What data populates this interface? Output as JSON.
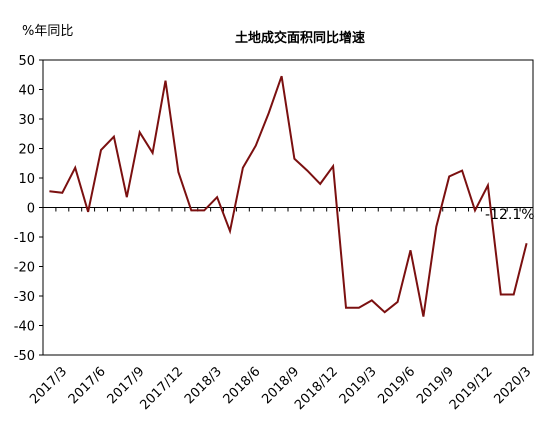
{
  "chart_data": {
    "type": "line",
    "title": "土地成交面积同比增速",
    "ylabel": "%年同比",
    "xlabel": "",
    "ylim": [
      -50,
      50
    ],
    "yticks": [
      50,
      40,
      30,
      20,
      10,
      0,
      -10,
      -20,
      -30,
      -40,
      -50
    ],
    "grid": false,
    "xtick_labels": [
      "2017/3",
      "2017/6",
      "2017/9",
      "2017/12",
      "2018/3",
      "2018/6",
      "2018/9",
      "2018/12",
      "2019/3",
      "2019/6",
      "2019/9",
      "2019/12",
      "2020/3"
    ],
    "x": [
      "2017/2",
      "2017/3",
      "2017/4",
      "2017/5",
      "2017/6",
      "2017/7",
      "2017/8",
      "2017/9",
      "2017/10",
      "2017/11",
      "2017/12",
      "2018/1",
      "2018/2",
      "2018/3",
      "2018/4",
      "2018/5",
      "2018/6",
      "2018/7",
      "2018/8",
      "2018/9",
      "2018/10",
      "2018/11",
      "2018/12",
      "2019/1",
      "2019/2",
      "2019/3",
      "2019/4",
      "2019/5",
      "2019/6",
      "2019/7",
      "2019/8",
      "2019/9",
      "2019/10",
      "2019/11",
      "2019/12",
      "2020/1",
      "2020/2",
      "2020/3"
    ],
    "series": [
      {
        "color": "#7b1010",
        "values": [
          5.5,
          5,
          13.5,
          -1.5,
          19.5,
          24,
          3.5,
          25.5,
          18.5,
          43,
          12,
          -1,
          -1,
          3.5,
          -8,
          13.5,
          21,
          32,
          44.5,
          16.5,
          12.5,
          8,
          14,
          -34,
          -34,
          -31.5,
          -35.5,
          -32,
          -14.5,
          -37,
          -6.5,
          10.5,
          12.5,
          -1,
          7.5,
          -29.5,
          -29.5,
          -12.1
        ]
      }
    ],
    "annotations": [
      {
        "text": "-12.1%",
        "x": "2020/3",
        "y": -12.1
      }
    ]
  }
}
